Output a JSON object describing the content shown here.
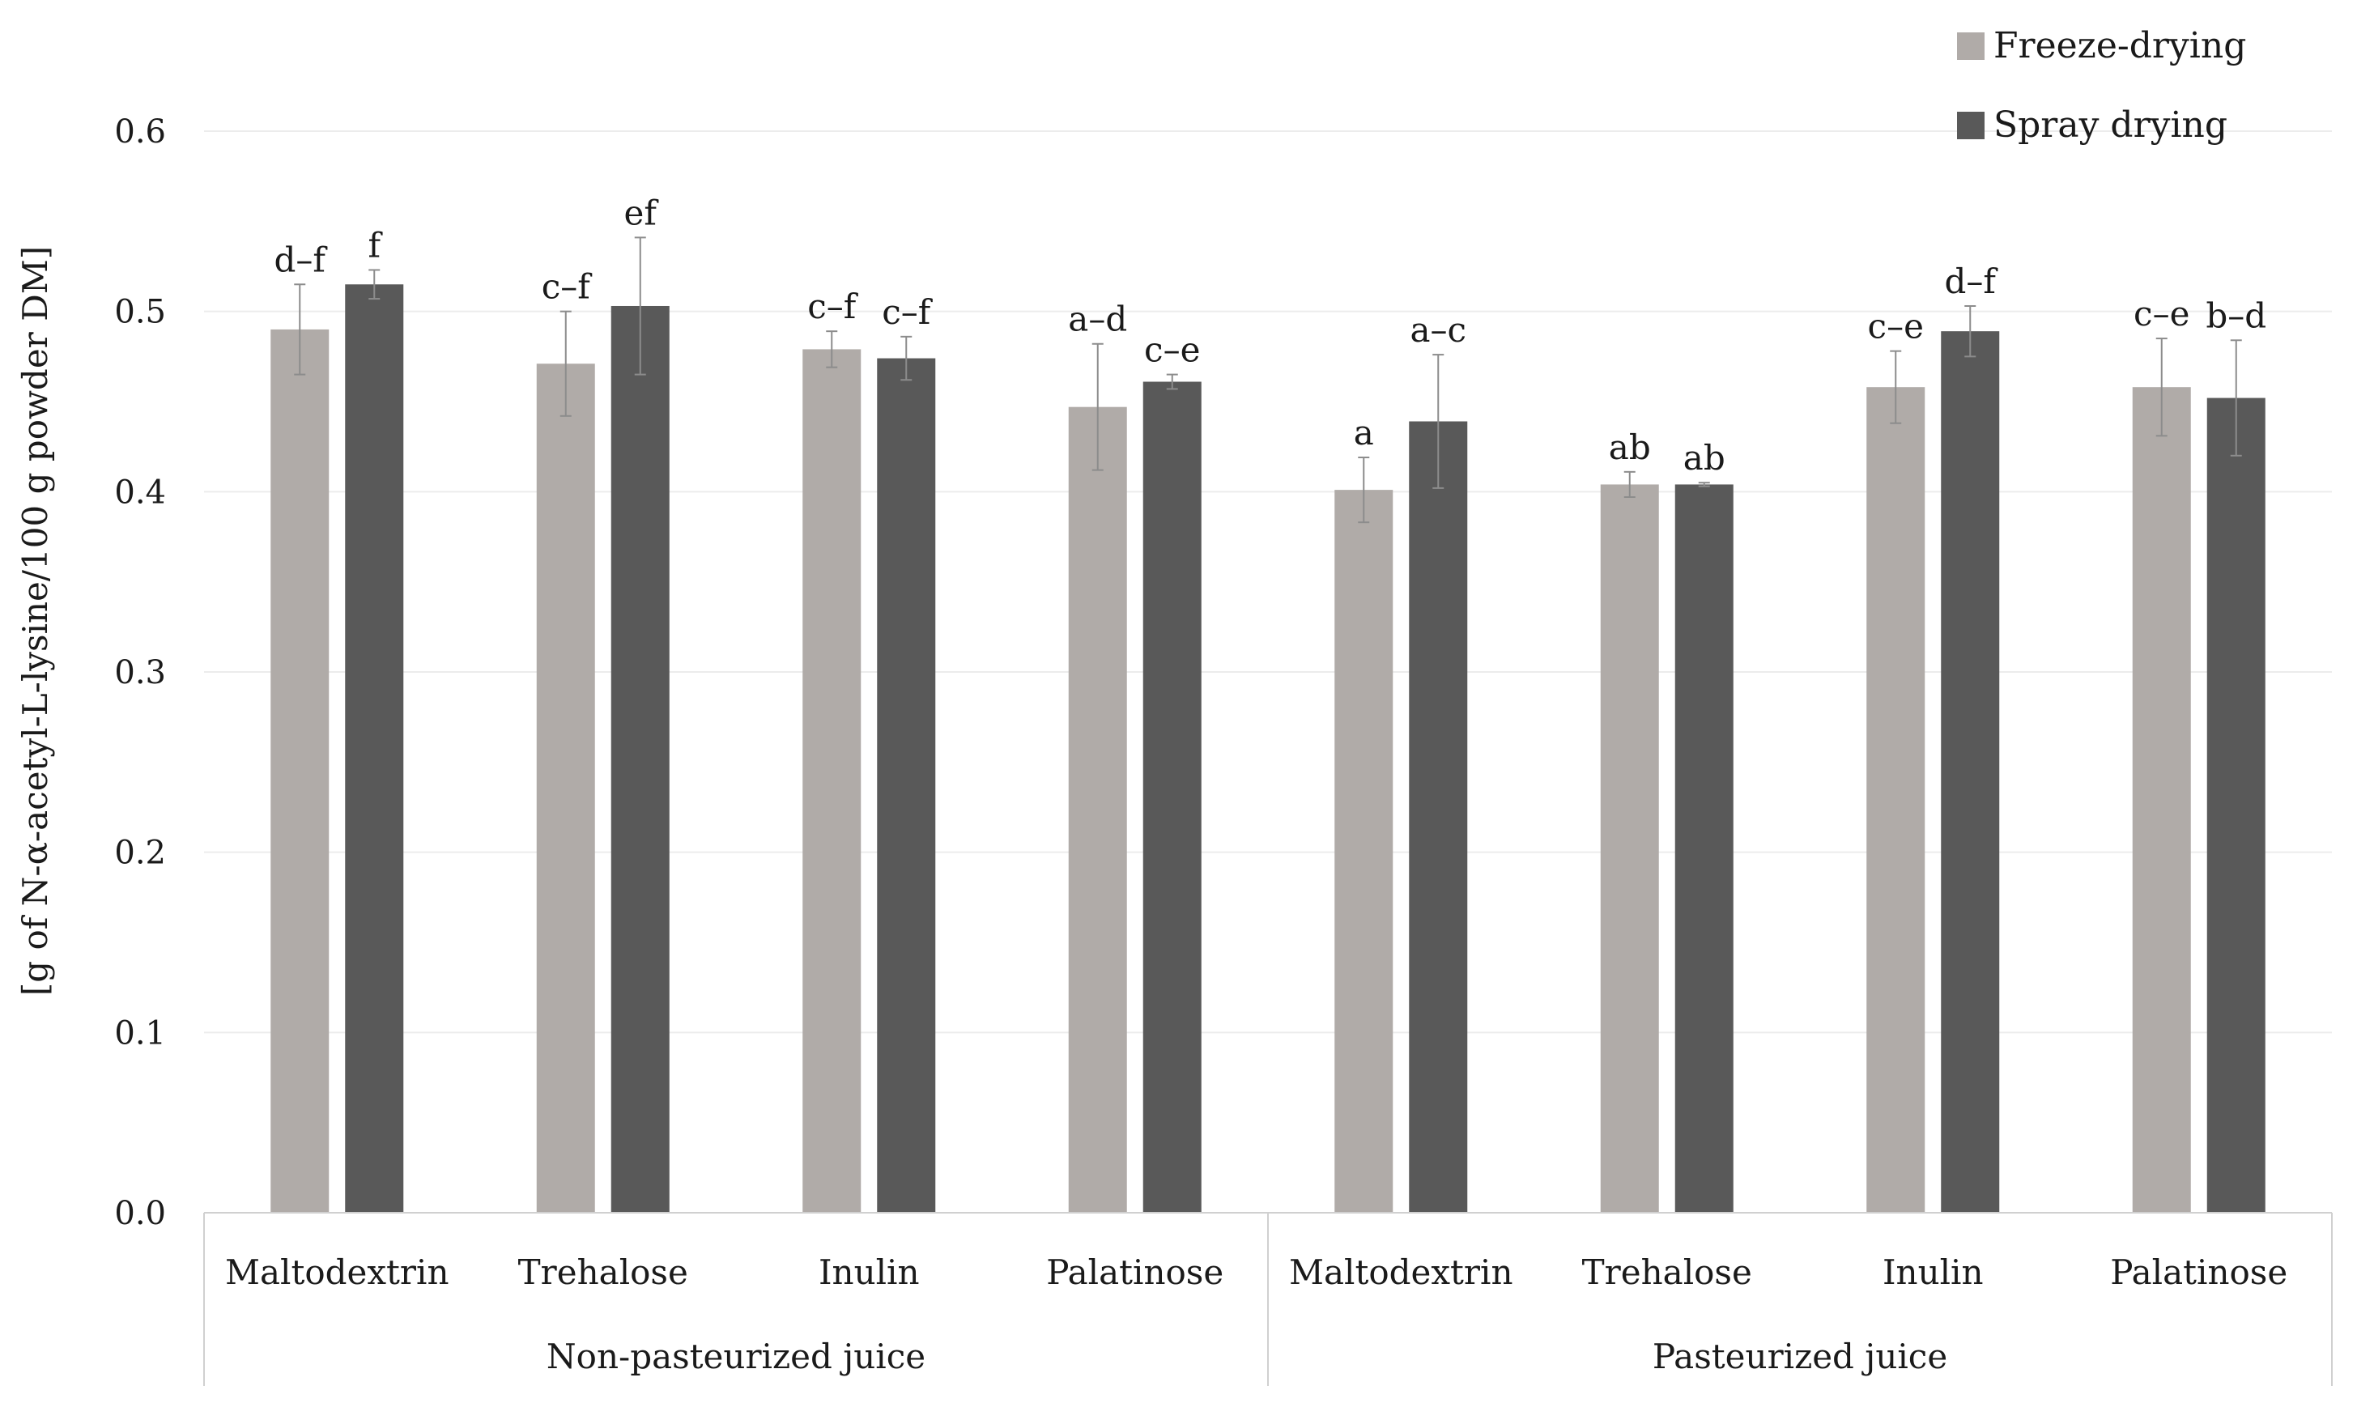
{
  "chart_data": {
    "type": "bar",
    "title": "",
    "ylabel": "[g of N-α-acetyl-L-lysine/100 g powder DM]",
    "ylim": [
      0,
      0.6
    ],
    "yticks": [
      "0.0",
      "0.1",
      "0.2",
      "0.3",
      "0.4",
      "0.5",
      "0.6"
    ],
    "grid": true,
    "legend_position": "top-right",
    "groups": [
      {
        "label": "Non-pasteurized juice",
        "span": [
          0,
          3
        ]
      },
      {
        "label": "Pasteurized juice",
        "span": [
          4,
          7
        ]
      }
    ],
    "categories": [
      "Maltodextrin",
      "Trehalose",
      "Inulin",
      "Palatinose",
      "Maltodextrin",
      "Trehalose",
      "Inulin",
      "Palatinose"
    ],
    "series": [
      {
        "name": "Freeze-drying",
        "color": "#b0aba8",
        "values": [
          0.49,
          0.471,
          0.479,
          0.447,
          0.401,
          0.404,
          0.458,
          0.458
        ],
        "errors": [
          0.025,
          0.029,
          0.01,
          0.035,
          0.018,
          0.007,
          0.02,
          0.027
        ],
        "labels": [
          "d–f",
          "c–f",
          "c–f",
          "a–d",
          "a",
          "ab",
          "c–e",
          "c–e"
        ]
      },
      {
        "name": "Spray drying",
        "color": "#595959",
        "values": [
          0.515,
          0.503,
          0.474,
          0.461,
          0.439,
          0.404,
          0.489,
          0.452
        ],
        "errors": [
          0.008,
          0.038,
          0.012,
          0.004,
          0.037,
          0.001,
          0.014,
          0.032
        ],
        "labels": [
          "f",
          "ef",
          "c–f",
          "c–e",
          "a–c",
          "ab",
          "d–f",
          "b–d"
        ]
      }
    ]
  }
}
